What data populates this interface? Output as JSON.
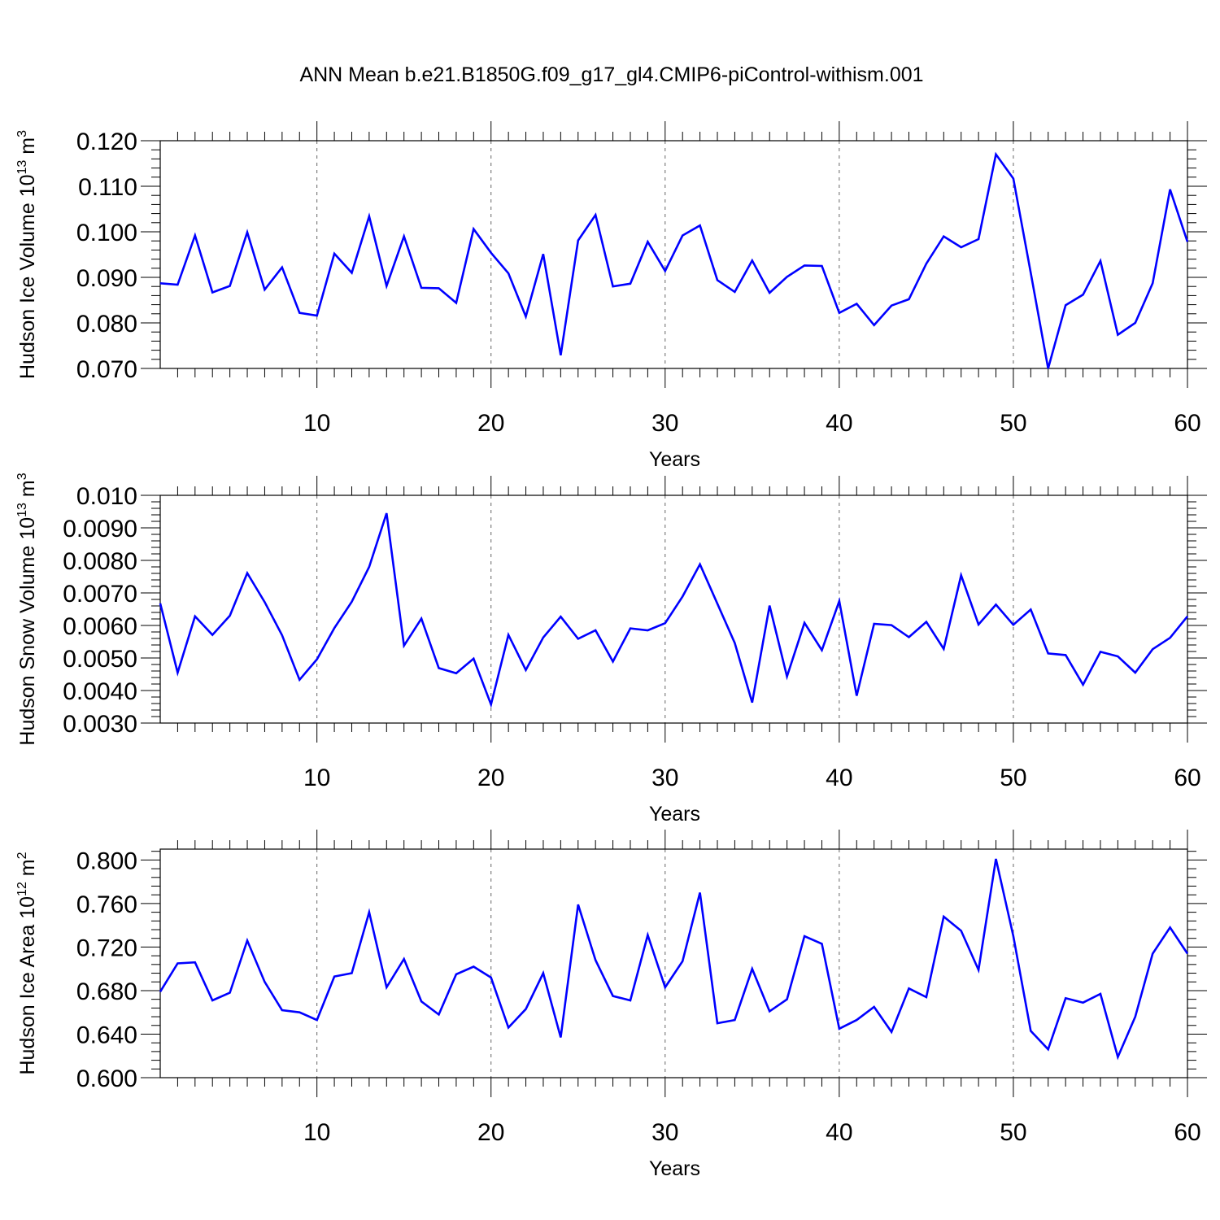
{
  "page": {
    "title": "ANN Mean b.e21.B1850G.f09_g17_gl4.CMIP6-piControl-withism.001"
  },
  "chart_data": [
    {
      "type": "line",
      "ylabel": "Hudson Ice Volume 10",
      "ylabel_sup": "13",
      "ylabel_unit": " m",
      "ylabel_unit_sup": "3",
      "xlabel": "Years",
      "xlim": [
        1,
        60
      ],
      "ylim": [
        0.07,
        0.12
      ],
      "xticks": [
        10,
        20,
        30,
        40,
        50,
        60
      ],
      "xtick_labels": [
        "10",
        "20",
        "30",
        "40",
        "50",
        "60"
      ],
      "yticks": [
        0.07,
        0.08,
        0.09,
        0.1,
        0.11,
        0.12
      ],
      "ytick_labels": [
        "0.070",
        "0.080",
        "0.090",
        "0.100",
        "0.110",
        "0.120"
      ],
      "grid": "dashed vertical at major x ticks",
      "line_color": "#0000ff",
      "x": [
        1,
        2,
        3,
        4,
        5,
        6,
        7,
        8,
        9,
        10,
        11,
        12,
        13,
        14,
        15,
        16,
        17,
        18,
        19,
        20,
        21,
        22,
        23,
        24,
        25,
        26,
        27,
        28,
        29,
        30,
        31,
        32,
        33,
        34,
        35,
        36,
        37,
        38,
        39,
        40,
        41,
        42,
        43,
        44,
        45,
        46,
        47,
        48,
        49,
        50,
        51,
        52,
        53,
        54,
        55,
        56,
        57,
        58,
        59,
        60
      ],
      "values": [
        0.0887,
        0.0884,
        0.0992,
        0.0867,
        0.0881,
        0.0999,
        0.0873,
        0.0922,
        0.0822,
        0.0816,
        0.0952,
        0.091,
        0.1034,
        0.0881,
        0.099,
        0.0877,
        0.0876,
        0.0844,
        0.1006,
        0.0954,
        0.0909,
        0.0814,
        0.0951,
        0.0729,
        0.0981,
        0.1037,
        0.088,
        0.0886,
        0.0978,
        0.0914,
        0.0992,
        0.1014,
        0.0894,
        0.0868,
        0.0937,
        0.0866,
        0.0901,
        0.0926,
        0.0925,
        0.0822,
        0.0842,
        0.0795,
        0.0838,
        0.0852,
        0.093,
        0.099,
        0.0966,
        0.0984,
        0.117,
        0.1117,
        0.091,
        0.07,
        0.0839,
        0.0862,
        0.0936,
        0.0774,
        0.08,
        0.0887,
        0.1093,
        0.0978
      ]
    },
    {
      "type": "line",
      "ylabel": "Hudson Snow Volume 10",
      "ylabel_sup": "13",
      "ylabel_unit": " m",
      "ylabel_unit_sup": "3",
      "xlabel": "Years",
      "xlim": [
        1,
        60
      ],
      "ylim": [
        0.003,
        0.01
      ],
      "xticks": [
        10,
        20,
        30,
        40,
        50,
        60
      ],
      "xtick_labels": [
        "10",
        "20",
        "30",
        "40",
        "50",
        "60"
      ],
      "yticks": [
        0.003,
        0.004,
        0.005,
        0.006,
        0.007,
        0.008,
        0.009,
        0.01
      ],
      "ytick_labels": [
        "0.0030",
        "0.0040",
        "0.0050",
        "0.0060",
        "0.0070",
        "0.0080",
        "0.0090",
        "0.010"
      ],
      "grid": "dashed vertical at major x ticks",
      "line_color": "#0000ff",
      "x": [
        1,
        2,
        3,
        4,
        5,
        6,
        7,
        8,
        9,
        10,
        11,
        12,
        13,
        14,
        15,
        16,
        17,
        18,
        19,
        20,
        21,
        22,
        23,
        24,
        25,
        26,
        27,
        28,
        29,
        30,
        31,
        32,
        33,
        34,
        35,
        36,
        37,
        38,
        39,
        40,
        41,
        42,
        43,
        44,
        45,
        46,
        47,
        48,
        49,
        50,
        51,
        52,
        53,
        54,
        55,
        56,
        57,
        58,
        59,
        60
      ],
      "values": [
        0.00668,
        0.00455,
        0.00628,
        0.00571,
        0.0063,
        0.00761,
        0.00672,
        0.0057,
        0.00433,
        0.00496,
        0.00592,
        0.00673,
        0.0078,
        0.00945,
        0.00538,
        0.00621,
        0.00469,
        0.00453,
        0.00498,
        0.00357,
        0.00571,
        0.00463,
        0.00563,
        0.00627,
        0.00559,
        0.00585,
        0.00489,
        0.00591,
        0.00585,
        0.00607,
        0.00689,
        0.00788,
        0.00667,
        0.00546,
        0.00363,
        0.00661,
        0.00443,
        0.00608,
        0.00524,
        0.00675,
        0.00384,
        0.00605,
        0.00601,
        0.00564,
        0.00611,
        0.00528,
        0.00754,
        0.00603,
        0.00664,
        0.00602,
        0.00649,
        0.00514,
        0.00509,
        0.00418,
        0.00519,
        0.00505,
        0.00455,
        0.00527,
        0.00562,
        0.00628
      ]
    },
    {
      "type": "line",
      "ylabel": "Hudson Ice Area 10",
      "ylabel_sup": "12",
      "ylabel_unit": " m",
      "ylabel_unit_sup": "2",
      "xlabel": "Years",
      "xlim": [
        1,
        60
      ],
      "ylim": [
        0.6,
        0.81
      ],
      "xticks": [
        10,
        20,
        30,
        40,
        50,
        60
      ],
      "xtick_labels": [
        "10",
        "20",
        "30",
        "40",
        "50",
        "60"
      ],
      "yticks": [
        0.6,
        0.64,
        0.68,
        0.72,
        0.76,
        0.8
      ],
      "ytick_labels": [
        "0.600",
        "0.640",
        "0.680",
        "0.720",
        "0.760",
        "0.800"
      ],
      "grid": "dashed vertical at major x ticks",
      "line_color": "#0000ff",
      "x": [
        1,
        2,
        3,
        4,
        5,
        6,
        7,
        8,
        9,
        10,
        11,
        12,
        13,
        14,
        15,
        16,
        17,
        18,
        19,
        20,
        21,
        22,
        23,
        24,
        25,
        26,
        27,
        28,
        29,
        30,
        31,
        32,
        33,
        34,
        35,
        36,
        37,
        38,
        39,
        40,
        41,
        42,
        43,
        44,
        45,
        46,
        47,
        48,
        49,
        50,
        51,
        52,
        53,
        54,
        55,
        56,
        57,
        58,
        59,
        60
      ],
      "values": [
        0.679,
        0.705,
        0.706,
        0.671,
        0.678,
        0.726,
        0.688,
        0.662,
        0.66,
        0.653,
        0.693,
        0.696,
        0.752,
        0.683,
        0.709,
        0.67,
        0.658,
        0.695,
        0.702,
        0.692,
        0.646,
        0.663,
        0.696,
        0.637,
        0.759,
        0.708,
        0.675,
        0.671,
        0.731,
        0.683,
        0.707,
        0.77,
        0.65,
        0.653,
        0.7,
        0.661,
        0.672,
        0.73,
        0.723,
        0.645,
        0.653,
        0.665,
        0.642,
        0.682,
        0.674,
        0.748,
        0.735,
        0.699,
        0.801,
        0.73,
        0.643,
        0.626,
        0.673,
        0.669,
        0.677,
        0.619,
        0.656,
        0.714,
        0.738,
        0.714
      ]
    }
  ]
}
